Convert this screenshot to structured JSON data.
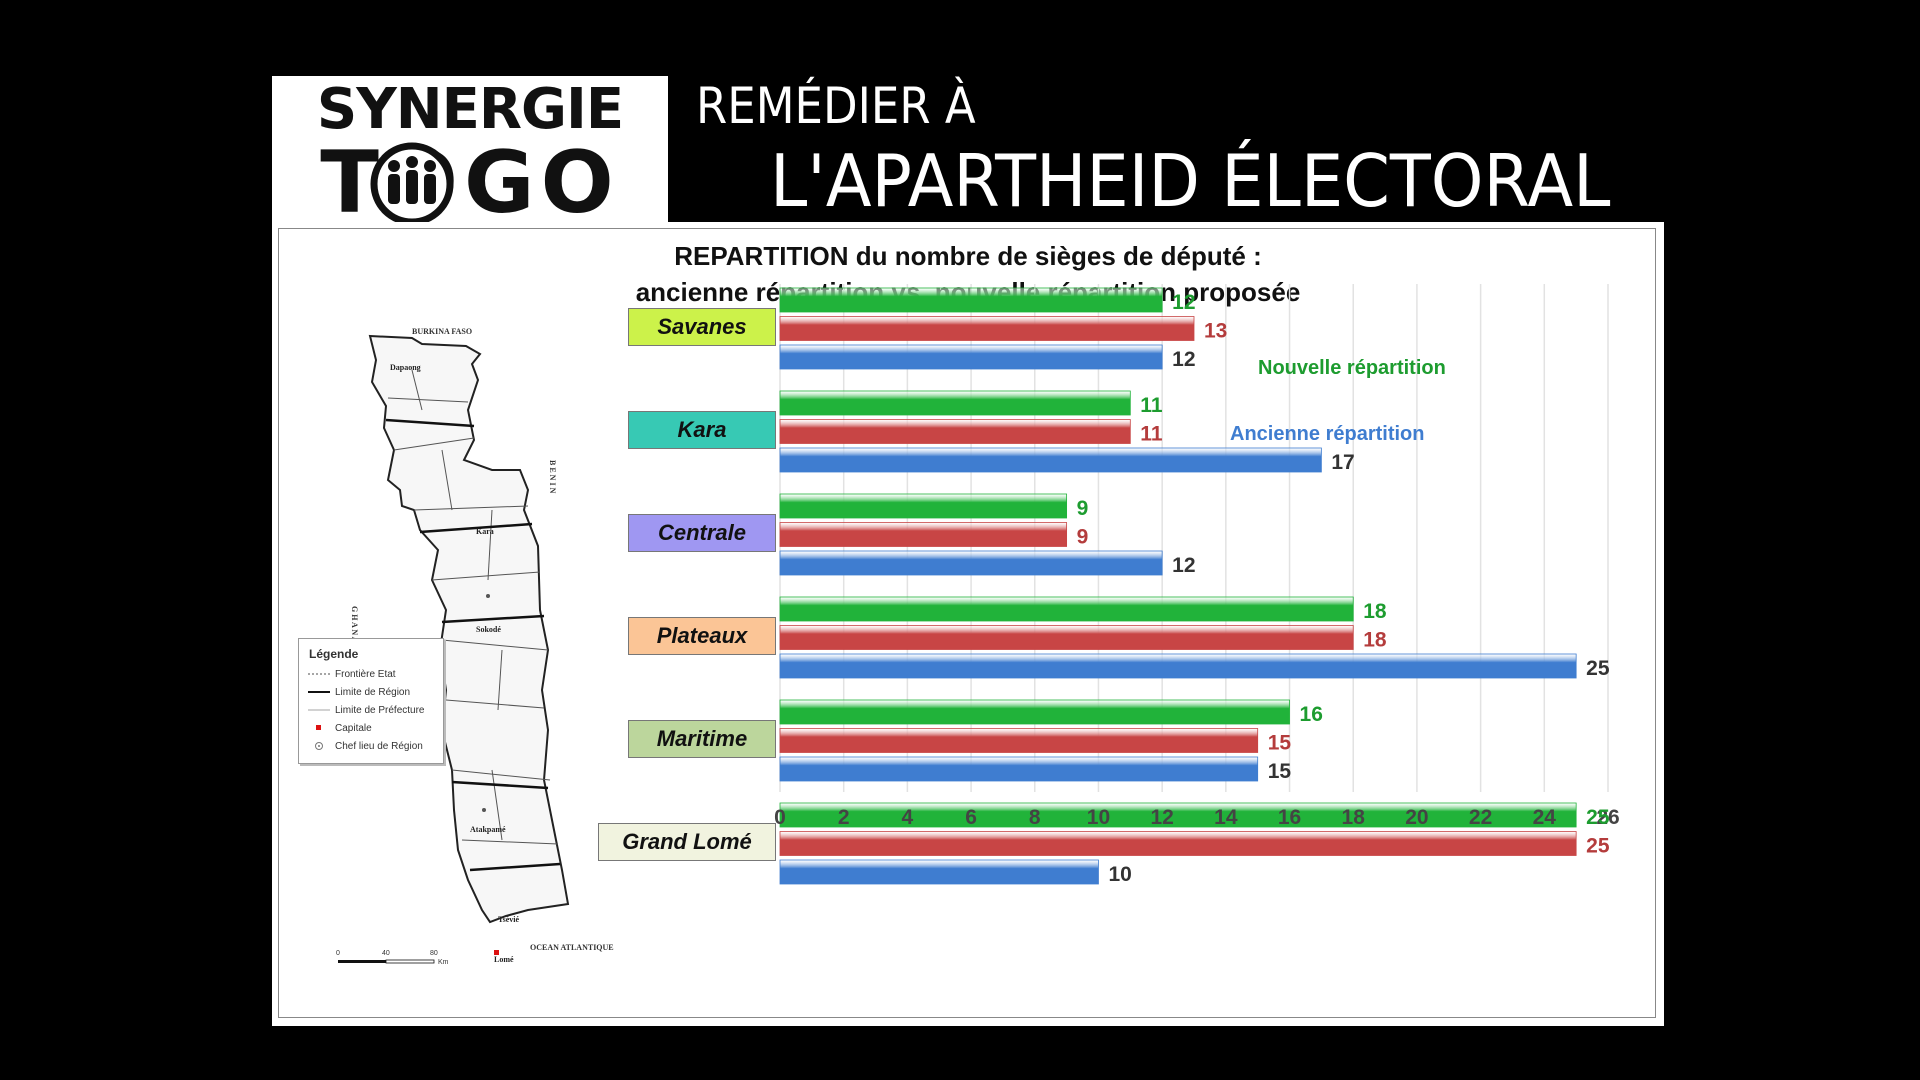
{
  "header": {
    "logo_line1": "SYNERGIE",
    "logo_line2": "TOGO",
    "title_line1": "REMÉDIER À",
    "title_line2": "L'APARTHEID ÉLECTORAL"
  },
  "map": {
    "north_label": "BURKINA FASO",
    "west_label": "G H A N A",
    "east_label": "B E N I N",
    "south_label": "OCEAN ATLANTIQUE",
    "place_labels": [
      "Dapaong",
      "Kara",
      "Sokodé",
      "Atakpamé",
      "Tsévié",
      "Lomé"
    ],
    "scale_ticks": [
      "0",
      "40",
      "80"
    ],
    "scale_unit": "Km",
    "legend": {
      "title": "Légende",
      "items": [
        {
          "label": "Frontière Etat",
          "symbol": "dotted-line"
        },
        {
          "label": "Limite de Région",
          "symbol": "solid-line"
        },
        {
          "label": "Limite de Préfecture",
          "symbol": "thin-line"
        },
        {
          "label": "Capitale",
          "symbol": "red-square"
        },
        {
          "label": "Chef lieu de Région",
          "symbol": "circle-dot"
        }
      ]
    }
  },
  "chart_data": {
    "type": "bar",
    "orientation": "horizontal",
    "title": "REPARTITION du nombre de sièges de député :",
    "subtitle": "ancienne répartition vs. nouvelle répartition proposée",
    "categories": [
      "Savanes",
      "Kara",
      "Centrale",
      "Plateaux",
      "Maritime",
      "Grand Lomé"
    ],
    "category_colors": [
      "#ccf24a",
      "#37c9b4",
      "#9f97f2",
      "#fbc596",
      "#bcd69c",
      "#f1f3df"
    ],
    "series": [
      {
        "name": "Nouvelle répartition",
        "color": "#21b33a",
        "values": [
          12,
          11,
          9,
          18,
          16,
          25
        ]
      },
      {
        "name": "",
        "color": "#c84545",
        "values": [
          13,
          11,
          9,
          18,
          15,
          25
        ]
      },
      {
        "name": "Ancienne répartition",
        "color": "#3f7dd0",
        "values": [
          12,
          17,
          12,
          25,
          15,
          10
        ]
      }
    ],
    "label_colors": [
      "#1d9c2f",
      "#b43c3c",
      "#333333"
    ],
    "xlim": [
      0,
      26
    ],
    "xticks": [
      0,
      2,
      4,
      6,
      8,
      10,
      12,
      14,
      16,
      18,
      20,
      22,
      24,
      26
    ],
    "grid": true,
    "legend_placement": "top-right"
  }
}
